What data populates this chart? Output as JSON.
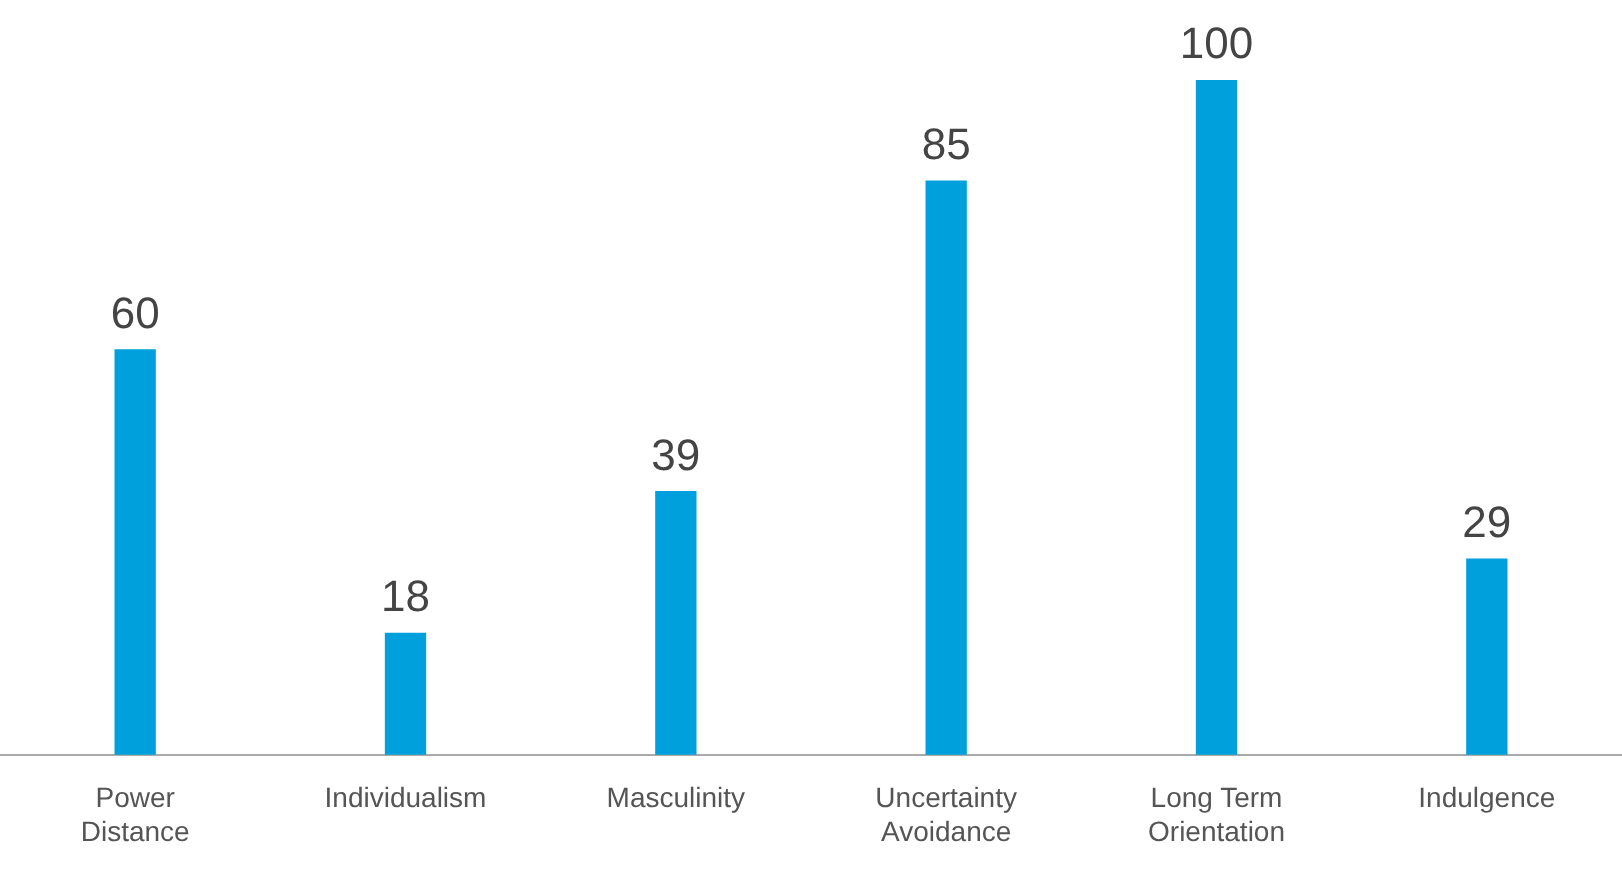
{
  "chart_data": {
    "type": "bar",
    "categories": [
      "Power Distance",
      "Individualism",
      "Masculinity",
      "Uncertainty Avoidance",
      "Long Term Orientation",
      "Indulgence"
    ],
    "values": [
      60,
      18,
      39,
      85,
      100,
      29
    ],
    "color": "#00a0dc",
    "data_labels": true,
    "grid": false,
    "legend": false
  }
}
